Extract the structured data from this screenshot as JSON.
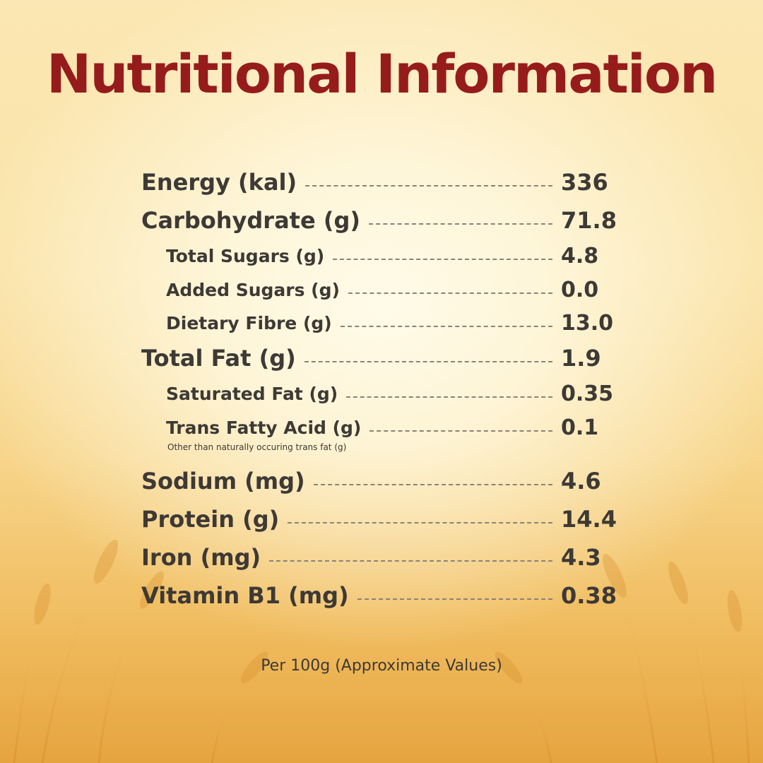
{
  "title": "Nutritional Information",
  "nutrients": [
    {
      "label": "Energy (kal)",
      "value": "336"
    },
    {
      "label": "Carbohydrate (g)",
      "value": "71.8"
    },
    {
      "label": "Total Sugars (g)",
      "value": "4.8"
    },
    {
      "label": "Added Sugars (g)",
      "value": "0.0"
    },
    {
      "label": "Dietary Fibre (g)",
      "value": "13.0"
    },
    {
      "label": "Total Fat (g)",
      "value": "1.9"
    },
    {
      "label": "Saturated Fat (g)",
      "value": "0.35"
    },
    {
      "label": "Trans Fatty Acid (g)",
      "value": "0.1"
    },
    {
      "label": "Sodium (mg)",
      "value": "4.6"
    },
    {
      "label": "Protein (g)",
      "value": "14.4"
    },
    {
      "label": "Iron (mg)",
      "value": "4.3"
    },
    {
      "label": "Vitamin B1 (mg)",
      "value": "0.38"
    }
  ],
  "trans_fat_note": "Other than naturally occuring trans fat (g)",
  "footer": "Per 100g (Approximate Values)",
  "colors": {
    "title": "#961c1c",
    "text": "#3d3935",
    "background_light": "#fffbe9",
    "background_wheat": "#e6a43f"
  }
}
